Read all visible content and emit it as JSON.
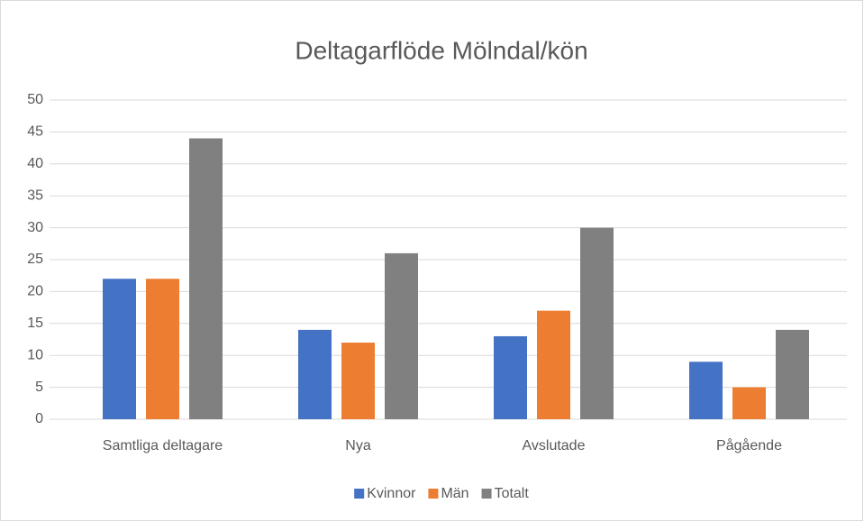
{
  "chart_data": {
    "type": "bar",
    "title": "Deltagarflöde Mölndal/kön",
    "categories": [
      "Samtliga deltagare",
      "Nya",
      "Avslutade",
      "Pågående"
    ],
    "series": [
      {
        "name": "Kvinnor",
        "color": "#4472c4",
        "values": [
          22,
          14,
          13,
          9
        ]
      },
      {
        "name": "Män",
        "color": "#ed7d31",
        "values": [
          22,
          12,
          17,
          5
        ]
      },
      {
        "name": "Totalt",
        "color": "#808080",
        "values": [
          44,
          26,
          30,
          14
        ]
      }
    ],
    "ylim": [
      0,
      50
    ],
    "yticks": [
      0,
      5,
      10,
      15,
      20,
      25,
      30,
      35,
      40,
      45,
      50
    ],
    "grid": true,
    "legend": "bottom"
  }
}
